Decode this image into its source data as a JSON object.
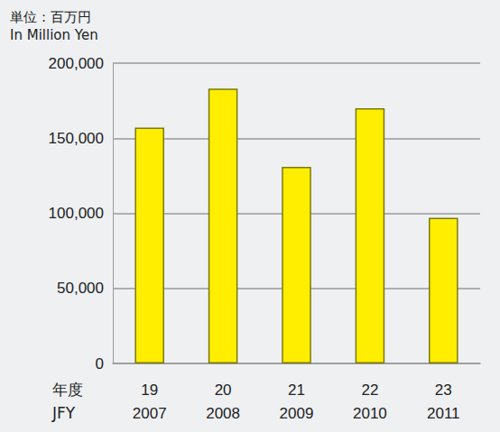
{
  "chart_data": {
    "type": "bar",
    "ylabel": "単位：百万円\nIn Million Yen",
    "xlabel": "年度\nJFY",
    "categories": [
      "19\n2007",
      "20\n2008",
      "21\n2009",
      "22\n2010",
      "23\n2011"
    ],
    "values": [
      157000,
      183000,
      131000,
      170000,
      97000
    ],
    "color": "#ffee00",
    "ylim": [
      0,
      200000
    ],
    "yticks": [
      0,
      {
        "value": 50000,
        "label": "50,000"
      },
      {
        "value": 100000,
        "label": "100,000"
      },
      {
        "value": 150000,
        "label": "150,000"
      },
      {
        "value": 200000,
        "label": "200,000"
      }
    ],
    "grid": true
  }
}
